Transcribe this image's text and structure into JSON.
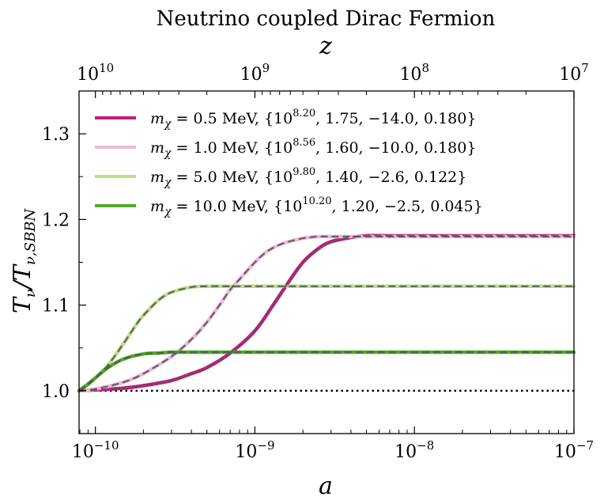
{
  "chart_data": {
    "type": "line",
    "title": "Neutrino coupled Dirac Fermion",
    "xlabel": "a",
    "ylabel": "T_ν/T_ν,SBBN",
    "top_xlabel": "z",
    "xscale": "log",
    "xlim": [
      7.9e-11,
      1e-07
    ],
    "ylim": [
      0.95,
      1.35
    ],
    "x_ticks": [
      {
        "base": "10",
        "exp": "−10"
      },
      {
        "base": "10",
        "exp": "−9"
      },
      {
        "base": "10",
        "exp": "−8"
      },
      {
        "base": "10",
        "exp": "−7"
      }
    ],
    "top_x_ticks": [
      {
        "base": "10",
        "exp": "10"
      },
      {
        "base": "10",
        "exp": "9"
      },
      {
        "base": "10",
        "exp": "8"
      },
      {
        "base": "10",
        "exp": "7"
      }
    ],
    "y_ticks": [
      "1.0",
      "1.1",
      "1.2",
      "1.3"
    ],
    "reference_line": {
      "y": 1.0,
      "style": "dotted",
      "color": "#000000"
    },
    "fit_line_style": {
      "style": "dashed",
      "color": "#555555"
    },
    "legend_position": "upper-left",
    "series": [
      {
        "name": "mχ = 0.5 MeV,  {10^8.20, 1.75, −14.0, 0.180}",
        "legend": {
          "pre": "m",
          "sub": "χ",
          "mid": " = 0.5 MeV,  {10",
          "sup": "8.20",
          "post": ", 1.75, −14.0, 0.180}"
        },
        "color": "#c51b7d",
        "x": [
          7.9e-11,
          1e-10,
          1.5e-10,
          2e-10,
          3e-10,
          4e-10,
          5e-10,
          7e-10,
          1e-09,
          1.3e-09,
          1.6e-09,
          2e-09,
          2.5e-09,
          3e-09,
          4e-09,
          5e-09,
          7e-09,
          1e-08,
          2e-08,
          5e-08,
          1e-07
        ],
        "y": [
          1.0,
          1.001,
          1.003,
          1.006,
          1.012,
          1.02,
          1.027,
          1.044,
          1.07,
          1.1,
          1.125,
          1.15,
          1.166,
          1.174,
          1.179,
          1.181,
          1.181,
          1.181,
          1.181,
          1.181,
          1.181
        ]
      },
      {
        "name": "mχ = 1.0 MeV,  {10^8.56, 1.60, −10.0, 0.180}",
        "legend": {
          "pre": "m",
          "sub": "χ",
          "mid": " = 1.0 MeV,  {10",
          "sup": "8.56",
          "post": ", 1.60, −10.0, 0.180}"
        },
        "color": "#f1b6da",
        "x": [
          7.9e-11,
          1e-10,
          1.5e-10,
          2e-10,
          3e-10,
          4e-10,
          5e-10,
          6e-10,
          7e-10,
          8e-10,
          1e-09,
          1.2e-09,
          1.5e-09,
          2e-09,
          2.5e-09,
          3e-09,
          5e-09,
          1e-08,
          1e-07
        ],
        "y": [
          1.0,
          1.002,
          1.01,
          1.02,
          1.04,
          1.06,
          1.08,
          1.1,
          1.118,
          1.13,
          1.15,
          1.163,
          1.172,
          1.178,
          1.18,
          1.18,
          1.18,
          1.18,
          1.18
        ]
      },
      {
        "name": "mχ = 5.0 MeV,  {10^9.80, 1.40, −2.6, 0.122}",
        "legend": {
          "pre": "m",
          "sub": "χ",
          "mid": " = 5.0 MeV,  {10",
          "sup": "9.80",
          "post": ", 1.40, −2.6, 0.122}"
        },
        "color": "#b8e186",
        "x": [
          7.9e-11,
          9e-11,
          1e-10,
          1.2e-10,
          1.5e-10,
          1.8e-10,
          2e-10,
          2.5e-10,
          3e-10,
          4e-10,
          5e-10,
          7e-10,
          1e-09,
          1e-08,
          1e-07
        ],
        "y": [
          1.0,
          1.007,
          1.015,
          1.03,
          1.055,
          1.077,
          1.088,
          1.106,
          1.115,
          1.121,
          1.122,
          1.122,
          1.122,
          1.122,
          1.122
        ]
      },
      {
        "name": "mχ = 10.0 MeV,  {10^10.20, 1.20, −2.5, 0.045}",
        "legend": {
          "pre": "m",
          "sub": "χ",
          "mid": " = 10.0 MeV,  {10",
          "sup": "10.20",
          "post": ", 1.20, −2.5, 0.045}"
        },
        "color": "#4dac26",
        "x": [
          7.9e-11,
          9e-11,
          1e-10,
          1.2e-10,
          1.5e-10,
          2e-10,
          2.5e-10,
          3e-10,
          4e-10,
          5e-10,
          1e-09,
          1e-08,
          1e-07
        ],
        "y": [
          1.0,
          1.008,
          1.015,
          1.027,
          1.037,
          1.043,
          1.044,
          1.045,
          1.045,
          1.045,
          1.045,
          1.045,
          1.045
        ]
      }
    ]
  }
}
